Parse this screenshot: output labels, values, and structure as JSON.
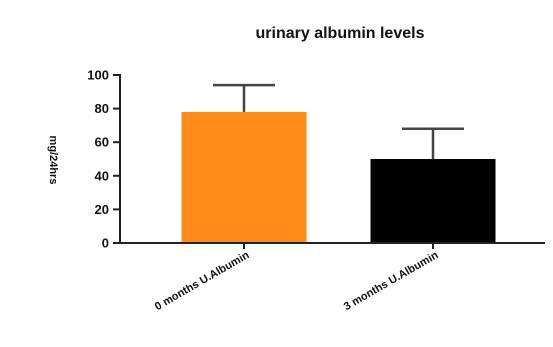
{
  "chart_data": {
    "type": "bar",
    "title": "urinary albumin levels",
    "ylabel": "mg/24hrs",
    "xlabel": "",
    "ylim": [
      0,
      100
    ],
    "yticks": [
      0,
      20,
      40,
      60,
      80,
      100
    ],
    "categories": [
      "0 months U.Albumin",
      "3 months U.Albumin"
    ],
    "values": [
      78,
      50
    ],
    "error_upper": [
      94,
      68
    ],
    "colors": [
      "#ff8c1a",
      "#000000"
    ],
    "grid": false
  }
}
